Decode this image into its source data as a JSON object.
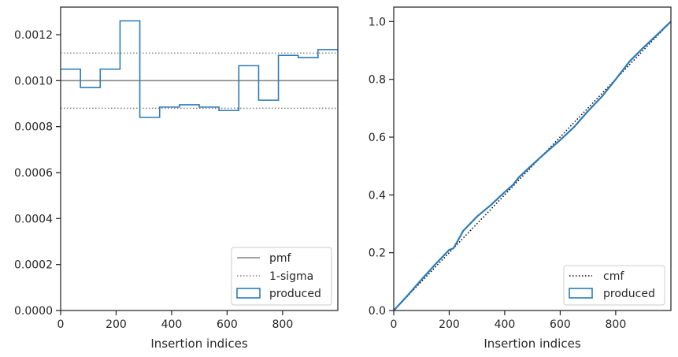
{
  "chart_data": [
    {
      "type": "histogram",
      "xlabel": "Insertion indices",
      "ylabel": "",
      "xlim": [
        0,
        999
      ],
      "ylim": [
        0,
        0.00132
      ],
      "x_ticks": [
        0,
        200,
        400,
        600,
        800
      ],
      "y_ticks": [
        0,
        0.0002,
        0.0004,
        0.0006,
        0.0008,
        0.001,
        0.0012
      ],
      "y_tick_labels": [
        "0.0000",
        "0.0002",
        "0.0004",
        "0.0006",
        "0.0008",
        "0.0010",
        "0.0012"
      ],
      "bin_edges": [
        0,
        71.4,
        142.7,
        214.1,
        285.4,
        356.8,
        428.1,
        499.5,
        570.9,
        642.2,
        713.6,
        784.9,
        856.3,
        927.6,
        999
      ],
      "bin_values": [
        0.00105,
        0.00097,
        0.00105,
        0.00126,
        0.00084,
        0.000885,
        0.000895,
        0.000885,
        0.00087,
        0.001065,
        0.000915,
        0.00111,
        0.0011,
        0.001135
      ],
      "pmf": 0.001,
      "sigma_upper": 0.00112,
      "sigma_lower": 0.00088,
      "legend": {
        "placement": "lower-right",
        "entries": [
          {
            "label": "pmf",
            "style": "solid-line"
          },
          {
            "label": "1-sigma",
            "style": "dotted-line"
          },
          {
            "label": "produced",
            "style": "box"
          }
        ]
      },
      "grid": false
    },
    {
      "type": "line",
      "xlabel": "Insertion indices",
      "ylabel": "",
      "xlim": [
        0,
        999
      ],
      "ylim": [
        0,
        1.05
      ],
      "x_ticks": [
        0,
        200,
        400,
        600,
        800
      ],
      "y_ticks": [
        0,
        0.2,
        0.4,
        0.6,
        0.8,
        1.0
      ],
      "y_tick_labels": [
        "0.0",
        "0.2",
        "0.4",
        "0.6",
        "0.8",
        "1.0"
      ],
      "series": [
        {
          "name": "cmf",
          "style": "dotted",
          "x": [
            0,
            999
          ],
          "y": [
            0,
            1.0
          ]
        },
        {
          "name": "produced",
          "style": "step",
          "x": [
            0,
            50,
            100,
            150,
            200,
            215,
            230,
            250,
            300,
            350,
            400,
            430,
            450,
            500,
            550,
            600,
            650,
            700,
            750,
            800,
            850,
            900,
            950,
            999
          ],
          "y": [
            0,
            0.052,
            0.107,
            0.16,
            0.21,
            0.215,
            0.24,
            0.275,
            0.325,
            0.365,
            0.41,
            0.435,
            0.46,
            0.505,
            0.548,
            0.59,
            0.635,
            0.69,
            0.74,
            0.8,
            0.862,
            0.91,
            0.955,
            1.0
          ]
        }
      ],
      "legend": {
        "placement": "lower-right",
        "entries": [
          {
            "label": "cmf",
            "style": "dotted-line"
          },
          {
            "label": "produced",
            "style": "box"
          }
        ]
      },
      "grid": false
    }
  ],
  "colors": {
    "produced": "#2b7bba",
    "pmf": "#808080",
    "sigma": "#808080",
    "cmf": "#000000",
    "axes": "#262626"
  }
}
